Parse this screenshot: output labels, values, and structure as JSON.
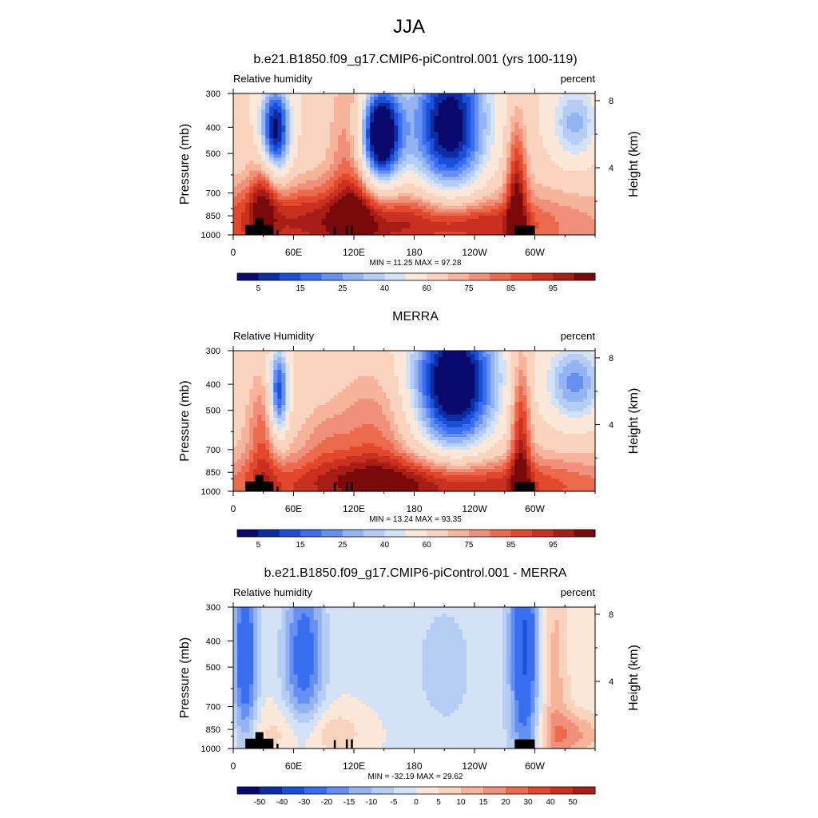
{
  "figure": {
    "season_title": "JJA"
  },
  "chart_data": [
    {
      "type": "heatmap",
      "title": "b.e21.B1850.f09_g17.CMIP6-piControl.001 (yrs 100-119)",
      "left_label": "Relative humidity",
      "right_label": "percent",
      "ylabel": "Pressure (mb)",
      "y2label": "Height (km)",
      "xticks": [
        "0",
        "60E",
        "120E",
        "180",
        "120W",
        "60W"
      ],
      "xtick_values": [
        0,
        60,
        120,
        180,
        240,
        300
      ],
      "xlim": [
        0,
        360
      ],
      "yticks": [
        "300",
        "400",
        "500",
        "700",
        "850",
        "1000"
      ],
      "ytick_values": [
        300,
        400,
        500,
        700,
        850,
        1000
      ],
      "ylim": [
        1000,
        300
      ],
      "y_scale": "log",
      "y2ticks": [
        "8",
        "4"
      ],
      "y2tick_values": [
        8,
        4
      ],
      "stats": "MIN =  11.25  MAX =  97.28",
      "colorbar_levels": [
        5,
        10,
        15,
        20,
        25,
        30,
        35,
        40,
        50,
        60,
        65,
        70,
        75,
        80,
        85,
        90,
        95
      ],
      "colorbar_labels": [
        "5",
        "15",
        "25",
        "40",
        "60",
        "75",
        "85",
        "95"
      ],
      "colorbar_label_positions": [
        1,
        3,
        5,
        7,
        9,
        11,
        13,
        15
      ],
      "features": [
        {
          "lon": 42,
          "p": 410,
          "dlon": 15,
          "dp": 0.13,
          "value": -52
        },
        {
          "lon": 145,
          "p": 430,
          "dlon": 22,
          "dp": 0.15,
          "value": -68
        },
        {
          "lon": 215,
          "p": 400,
          "dlon": 38,
          "dp": 0.22,
          "value": -55
        },
        {
          "lon": 340,
          "p": 390,
          "dlon": 25,
          "dp": 0.12,
          "value": -25
        },
        {
          "lon": 120,
          "p": 520,
          "dlon": 22,
          "dp": 0.35,
          "value": 22
        },
        {
          "lon": 30,
          "p": 720,
          "dlon": 14,
          "dp": 0.12,
          "value": 22
        },
        {
          "lon": 282,
          "p": 680,
          "dlon": 10,
          "dp": 0.22,
          "value": 30
        },
        {
          "lon": 120,
          "p": 880,
          "dlon": 180,
          "dp": 0.1,
          "value": 28
        },
        {
          "lon": 240,
          "p": 910,
          "dlon": 60,
          "dp": 0.05,
          "value": 12
        }
      ],
      "colors": [
        "#0a0a6e",
        "#0d2ea3",
        "#1a4fd8",
        "#3a6ef0",
        "#6590f2",
        "#93b3f2",
        "#b5cdf3",
        "#d4e2f6",
        "#fbe8d9",
        "#f9d3bd",
        "#f6b59b",
        "#f1907a",
        "#ec6a4d",
        "#e3472c",
        "#c93020",
        "#a81d16",
        "#7a0a0a"
      ]
    },
    {
      "type": "heatmap",
      "title": "MERRA",
      "left_label": "Relative Humidity",
      "right_label": "percent",
      "ylabel": "Pressure (mb)",
      "y2label": "Height (km)",
      "xticks": [
        "0",
        "60E",
        "120E",
        "180",
        "120W",
        "60W"
      ],
      "xtick_values": [
        0,
        60,
        120,
        180,
        240,
        300
      ],
      "xlim": [
        0,
        360
      ],
      "yticks": [
        "300",
        "400",
        "500",
        "700",
        "850",
        "1000"
      ],
      "ytick_values": [
        300,
        400,
        500,
        700,
        850,
        1000
      ],
      "ylim": [
        1000,
        300
      ],
      "y_scale": "log",
      "y2ticks": [
        "8",
        "4"
      ],
      "y2tick_values": [
        8,
        4
      ],
      "stats": "MIN =  13.24  MAX =  93.35",
      "colorbar_levels": [
        5,
        10,
        15,
        20,
        25,
        30,
        35,
        40,
        50,
        60,
        65,
        70,
        75,
        80,
        85,
        90,
        95
      ],
      "colorbar_labels": [
        "5",
        "15",
        "25",
        "40",
        "60",
        "75",
        "85",
        "95"
      ],
      "colorbar_label_positions": [
        1,
        3,
        5,
        7,
        9,
        11,
        13,
        15
      ],
      "features": [
        {
          "lon": 45,
          "p": 430,
          "dlon": 10,
          "dp": 0.13,
          "value": -45
        },
        {
          "lon": 220,
          "p": 400,
          "dlon": 42,
          "dp": 0.2,
          "value": -62
        },
        {
          "lon": 340,
          "p": 400,
          "dlon": 30,
          "dp": 0.12,
          "value": -30
        },
        {
          "lon": 140,
          "p": 600,
          "dlon": 40,
          "dp": 0.2,
          "value": 15
        },
        {
          "lon": 30,
          "p": 620,
          "dlon": 16,
          "dp": 0.2,
          "value": 18
        },
        {
          "lon": 286,
          "p": 600,
          "dlon": 10,
          "dp": 0.25,
          "value": 30
        },
        {
          "lon": 180,
          "p": 940,
          "dlon": 170,
          "dp": 0.08,
          "value": 30
        },
        {
          "lon": 90,
          "p": 640,
          "dlon": 25,
          "dp": 0.1,
          "value": 8
        }
      ],
      "colors": [
        "#0a0a6e",
        "#0d2ea3",
        "#1a4fd8",
        "#3a6ef0",
        "#6590f2",
        "#93b3f2",
        "#b5cdf3",
        "#d4e2f6",
        "#fbe8d9",
        "#f9d3bd",
        "#f6b59b",
        "#f1907a",
        "#ec6a4d",
        "#e3472c",
        "#c93020",
        "#a81d16",
        "#7a0a0a"
      ]
    },
    {
      "type": "heatmap",
      "title": "b.e21.B1850.f09_g17.CMIP6-piControl.001 - MERRA",
      "left_label": "Relative humidity",
      "right_label": "percent",
      "ylabel": "Pressure (mb)",
      "y2label": "Height (km)",
      "xticks": [
        "0",
        "60E",
        "120E",
        "180",
        "120W",
        "60W"
      ],
      "xtick_values": [
        0,
        60,
        120,
        180,
        240,
        300
      ],
      "xlim": [
        0,
        360
      ],
      "yticks": [
        "300",
        "400",
        "500",
        "700",
        "850",
        "1000"
      ],
      "ytick_values": [
        300,
        400,
        500,
        700,
        850,
        1000
      ],
      "ylim": [
        1000,
        300
      ],
      "y_scale": "log",
      "y2ticks": [
        "8",
        "4"
      ],
      "y2tick_values": [
        8,
        4
      ],
      "stats": "MIN = -32.19  MAX =  29.62",
      "colorbar_levels": [
        -50,
        -40,
        -30,
        -20,
        -15,
        -10,
        -5,
        0,
        5,
        10,
        15,
        20,
        30,
        40,
        50
      ],
      "colorbar_labels": [
        "-50",
        "-40",
        "-30",
        "-20",
        "-15",
        "-10",
        "-5",
        "0",
        "5",
        "10",
        "15",
        "20",
        "30",
        "40",
        "50"
      ],
      "colorbar_label_positions": [
        1,
        2,
        3,
        4,
        5,
        6,
        7,
        8,
        9,
        10,
        11,
        12,
        13,
        14,
        15
      ],
      "features": [
        {
          "lon": 12,
          "p": 450,
          "dlon": 12,
          "dp": 0.25,
          "value": -30
        },
        {
          "lon": 70,
          "p": 450,
          "dlon": 20,
          "dp": 0.25,
          "value": -25
        },
        {
          "lon": 290,
          "p": 420,
          "dlon": 14,
          "dp": 0.35,
          "value": -30
        },
        {
          "lon": 210,
          "p": 500,
          "dlon": 80,
          "dp": 0.5,
          "value": -6
        },
        {
          "lon": 320,
          "p": 560,
          "dlon": 15,
          "dp": 0.5,
          "value": 12
        },
        {
          "lon": 80,
          "p": 880,
          "dlon": 60,
          "dp": 0.08,
          "value": 10
        },
        {
          "lon": 340,
          "p": 890,
          "dlon": 30,
          "dp": 0.07,
          "value": 15
        }
      ],
      "colors": [
        "#0a0a6e",
        "#0d2ea3",
        "#1a4fd8",
        "#3a6ef0",
        "#6590f2",
        "#93b3f2",
        "#b5cdf3",
        "#d4e2f6",
        "#fbe8d9",
        "#f9d3bd",
        "#f6b59b",
        "#f1907a",
        "#ec6a4d",
        "#e3472c",
        "#c93020",
        "#a81d16"
      ]
    }
  ]
}
